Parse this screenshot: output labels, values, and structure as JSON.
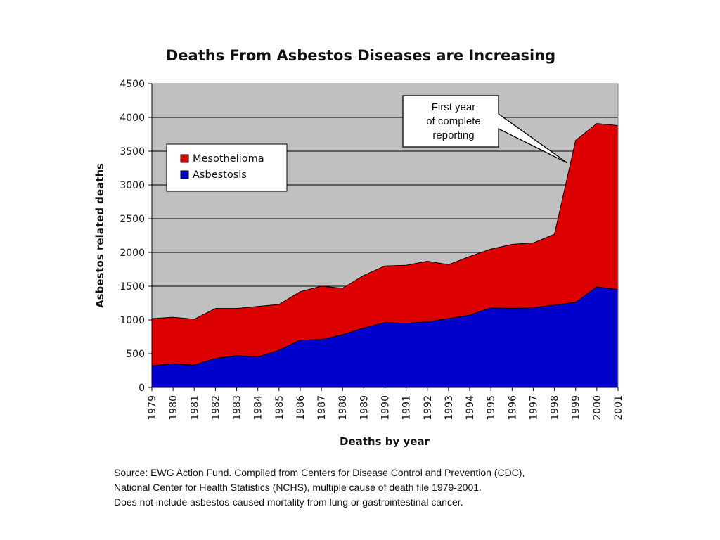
{
  "chart_data": {
    "type": "area",
    "stacked": true,
    "title": "Deaths From Asbestos Diseases are Increasing",
    "xlabel": "Deaths by year",
    "ylabel": "Asbestos related deaths",
    "ylim": [
      0,
      4500
    ],
    "yticks": [
      "0",
      "500",
      "1000",
      "1500",
      "2000",
      "2500",
      "3000",
      "3500",
      "4000",
      "4500"
    ],
    "ytick_values": [
      0,
      500,
      1000,
      1500,
      2000,
      2500,
      3000,
      3500,
      4000,
      4500
    ],
    "grid": true,
    "legend_position": "top-left",
    "categories": [
      "1979",
      "1980",
      "1981",
      "1982",
      "1983",
      "1984",
      "1985",
      "1986",
      "1987",
      "1988",
      "1989",
      "1990",
      "1991",
      "1992",
      "1993",
      "1994",
      "1995",
      "1996",
      "1997",
      "1998",
      "1999",
      "2000",
      "2001"
    ],
    "series": [
      {
        "name": "Asbestosis",
        "color": "#0000cc",
        "values": [
          320,
          350,
          330,
          430,
          470,
          450,
          550,
          700,
          710,
          780,
          880,
          960,
          950,
          970,
          1020,
          1070,
          1180,
          1170,
          1180,
          1220,
          1260,
          1490,
          1450
        ]
      },
      {
        "name": "Mesothelioma",
        "color": "#dd0000",
        "values": [
          700,
          690,
          680,
          740,
          700,
          750,
          680,
          720,
          790,
          690,
          780,
          840,
          860,
          900,
          800,
          870,
          870,
          950,
          960,
          1050,
          2400,
          2420,
          2430
        ]
      }
    ],
    "legend_order": [
      "Mesothelioma",
      "Asbestosis"
    ],
    "annotation": {
      "lines": [
        "First year",
        "of complete",
        "reporting"
      ],
      "target_category": "1999"
    },
    "plot_background": "#c0c0c0"
  },
  "source": {
    "line1": "Source: EWG Action Fund. Compiled from Centers for Disease Control and Prevention (CDC),",
    "line2": "National Center for Health Statistics (NCHS), multiple cause of death file 1979-2001.",
    "line3": "Does not include asbestos-caused mortality from lung or gastrointestinal cancer."
  }
}
